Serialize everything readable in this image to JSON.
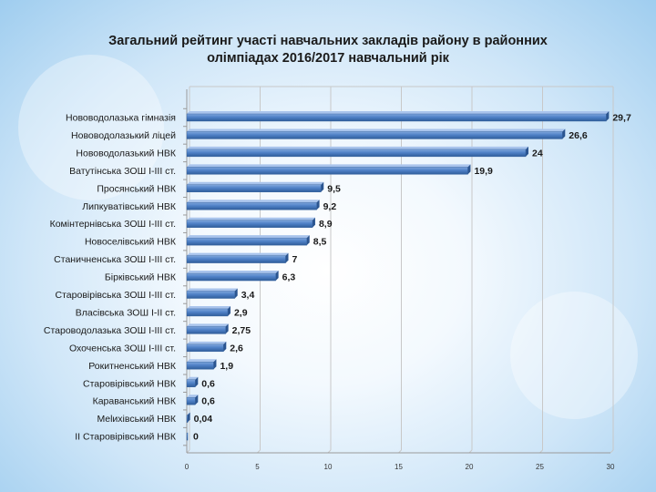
{
  "chart_data": {
    "type": "bar",
    "orientation": "horizontal",
    "title_lines": [
      "Загальний рейтинг участі навчальних закладів району в районних",
      "олімпіадах 2016/2017 навчальний рік"
    ],
    "categories": [
      "Нововодолазька гімназія",
      "Нововодолазький ліцей",
      "Нововодолазький НВК",
      "Ватутінська ЗОШ І-ІІІ ст.",
      "Просянський НВК",
      "Липкуватівський НВК",
      "Комінтернівська ЗОШ І-ІІІ ст.",
      "Новоселівський НВК",
      "Станичненська ЗОШ І-ІІІ ст.",
      "Бірківський НВК",
      "Старовірівська ЗОШ І-ІІІ ст.",
      "Власівська ЗОШ І-ІІ ст.",
      "Староводолазька ЗОШ І-ІІІ ст.",
      "Охоченська ЗОШ І-ІІІ ст.",
      "Рокитненський НВК",
      "Старовірівський НВК",
      "Караванський НВК",
      "Melихівський НВК",
      "ІІ Старовірівський НВК"
    ],
    "values": [
      29.7,
      26.6,
      24,
      19.9,
      9.5,
      9.2,
      8.9,
      8.5,
      7,
      6.3,
      3.4,
      2.9,
      2.75,
      2.6,
      1.9,
      0.6,
      0.6,
      0.04,
      0
    ],
    "value_labels": [
      "29,7",
      "26,6",
      "24",
      "19,9",
      "9,5",
      "9,2",
      "8,9",
      "8,5",
      "7",
      "6,3",
      "3,4",
      "2,9",
      "2,75",
      "2,6",
      "1,9",
      "0,6",
      "0,6",
      "0,04",
      "0"
    ],
    "xlim": [
      0,
      30
    ],
    "xticks": [
      0,
      5,
      10,
      15,
      20,
      25,
      30
    ],
    "xlabel": "",
    "ylabel": "",
    "grid": true,
    "legend": "none",
    "colors": {
      "bar_top": "#7fa6dc",
      "bar_mid": "#4f81c7",
      "bar_bottom": "#2f5d9a",
      "grid": "#c8c8c8",
      "axis": "#9a9a9a",
      "text": "#1a1a1a"
    }
  }
}
